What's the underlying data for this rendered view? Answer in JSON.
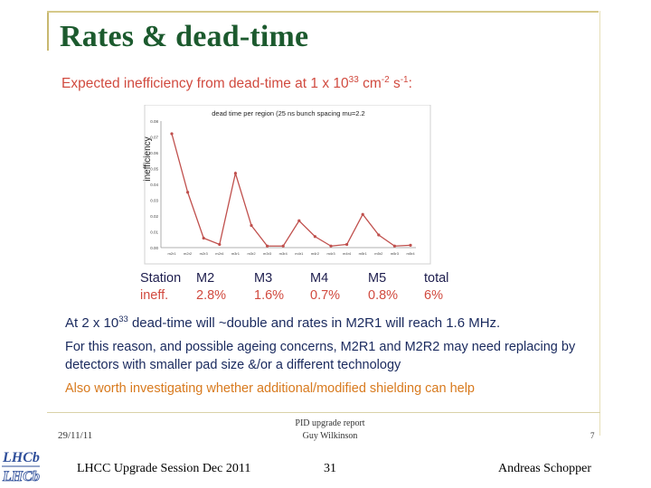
{
  "slide": {
    "title": "Rates & dead-time",
    "subtitle_pre": "Expected inefficiency from dead-time at 1 x 10",
    "subtitle_exp1": "33",
    "subtitle_mid": " cm",
    "subtitle_exp2": "-2",
    "subtitle_mid2": " s",
    "subtitle_exp3": "-1",
    "subtitle_post": ":"
  },
  "table": {
    "headers": [
      "Station",
      "M2",
      "M3",
      "M4",
      "M5",
      "total"
    ],
    "values": [
      "ineff.",
      "2.8%",
      "1.6%",
      "0.7%",
      "0.8%",
      "6%"
    ]
  },
  "body": {
    "line1_pre": "At 2 x 10",
    "line1_exp": "33",
    "line1_post": " dead-time will ~double and rates in M2R1 will reach 1.6 MHz.",
    "line2": "For this reason, and possible ageing concerns, M2R1 and M2R2 may need replacing by detectors with smaller pad size &/or a different technology",
    "line3": "Also worth investigating whether additional/modified shielding can help"
  },
  "footer": {
    "date": "29/11/11",
    "center_line1": "PID upgrade report",
    "center_line2": "Guy Wilkinson",
    "page": "7",
    "session": "LHCC Upgrade Session Dec 2011",
    "slide_number": "31",
    "presenter": "Andreas Schopper",
    "logo_text_1": "LHCb",
    "logo_text_2": "LHCb"
  },
  "colors": {
    "title": "#1c5a2e",
    "accent_red": "#d14a3f",
    "body_blue": "#1a2a5e",
    "highlight_orange": "#d87a1e"
  },
  "chart_data": {
    "type": "line",
    "title": "dead time per region (25 ns bunch spacing mu=2.2",
    "ylabel": "inefficiency",
    "xlabel": "",
    "categories": [
      "m2r1",
      "m2r2",
      "m2r3",
      "m2r4",
      "m3r1",
      "m3r2",
      "m3r3",
      "m3r4",
      "m4r1",
      "m4r2",
      "m4r3",
      "m4r4",
      "m5r1",
      "m5r2",
      "m5r3",
      "m5r4"
    ],
    "yticks": [
      "0.00",
      "0.01",
      "0.02",
      "0.03",
      "0.04",
      "0.05",
      "0.06",
      "0.07",
      "0.08"
    ],
    "ylim": [
      0,
      0.08
    ],
    "series": [
      {
        "values": [
          0.072,
          0.035,
          0.006,
          0.002,
          0.047,
          0.014,
          0.001,
          0.001,
          0.017,
          0.007,
          0.001,
          0.002,
          0.021,
          0.008,
          0.001,
          0.0015
        ]
      }
    ],
    "grid": false,
    "line_color": "#c0504d"
  }
}
